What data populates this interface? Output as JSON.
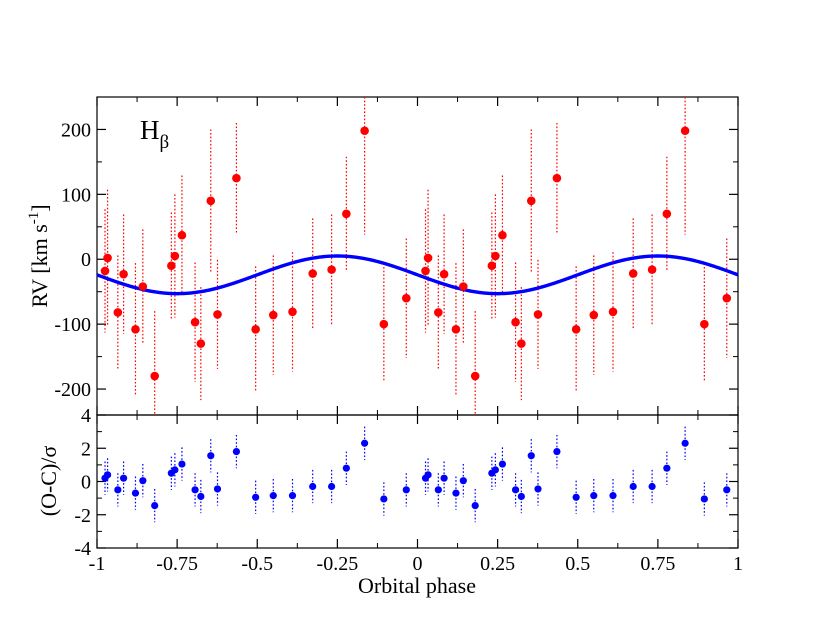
{
  "chart_data": [
    {
      "type": "scatter",
      "panel": "top",
      "title": "",
      "annotation": {
        "base": "H",
        "subscript": "β"
      },
      "ylabel": {
        "text": "RV [km s",
        "superscript": "-1",
        "close": "]"
      },
      "xlim": [
        -1,
        1
      ],
      "ylim": [
        -240,
        250
      ],
      "yticks": [
        -200,
        -100,
        0,
        100,
        200
      ],
      "ytick_labels": [
        "-200",
        "-100",
        "0",
        "100",
        "200"
      ],
      "grid": false,
      "colors": {
        "points": "#ff0000",
        "model": "#0000ff"
      },
      "model": {
        "name": "RV fit",
        "mean": -24,
        "amplitude": 29,
        "min_phase": -0.75
      },
      "series": [
        {
          "name": "RV",
          "x": [
            -0.975,
            -0.967,
            -0.935,
            -0.917,
            -0.88,
            -0.857,
            -0.82,
            -0.768,
            -0.757,
            -0.735,
            -0.694,
            -0.676,
            -0.645,
            -0.624,
            -0.565,
            -0.505,
            -0.45,
            -0.39,
            -0.327,
            -0.268,
            -0.222,
            -0.165,
            -0.105,
            -0.035,
            0.025,
            0.033,
            0.065,
            0.083,
            0.12,
            0.143,
            0.18,
            0.232,
            0.243,
            0.265,
            0.306,
            0.324,
            0.355,
            0.376,
            0.435,
            0.495,
            0.55,
            0.61,
            0.673,
            0.732,
            0.778,
            0.835,
            0.895,
            0.965
          ],
          "y": [
            -18,
            2,
            -82,
            -23,
            -108,
            -42,
            -180,
            -10,
            5,
            37,
            -97,
            -130,
            90,
            -85,
            125,
            -108,
            -86,
            -81,
            -22,
            -16,
            70,
            198,
            -100,
            -60,
            -18,
            2,
            -82,
            -23,
            -108,
            -42,
            -180,
            -10,
            5,
            37,
            -97,
            -130,
            90,
            -85,
            125,
            -108,
            -86,
            -81,
            -22,
            -16,
            70,
            198,
            -100,
            -60
          ],
          "err": [
            95,
            105,
            88,
            92,
            102,
            88,
            100,
            82,
            95,
            92,
            92,
            87,
            110,
            84,
            85,
            97,
            92,
            92,
            85,
            85,
            88,
            160,
            88,
            92,
            95,
            105,
            88,
            92,
            102,
            88,
            100,
            82,
            95,
            92,
            92,
            87,
            110,
            84,
            85,
            97,
            92,
            92,
            85,
            85,
            88,
            160,
            88,
            92
          ]
        }
      ]
    },
    {
      "type": "scatter",
      "panel": "bottom",
      "xlabel": "Orbital phase",
      "ylabel": "(O-C)/σ",
      "xlim": [
        -1,
        1
      ],
      "ylim": [
        -4,
        4
      ],
      "xticks": [
        -1,
        -0.75,
        -0.5,
        -0.25,
        0,
        0.25,
        0.5,
        0.75,
        1
      ],
      "xtick_labels": [
        "-1",
        "-0.75",
        "-0.5",
        "-0.25",
        "0",
        "0.25",
        "0.5",
        "0.75",
        "1"
      ],
      "yticks": [
        -4,
        -2,
        0,
        2,
        4
      ],
      "ytick_labels": [
        "-4",
        "-2",
        "0",
        "2",
        "4"
      ],
      "grid": false,
      "colors": {
        "points": "#0000ff"
      },
      "series": [
        {
          "name": "(O-C)/σ",
          "x": [
            -0.975,
            -0.967,
            -0.935,
            -0.917,
            -0.88,
            -0.857,
            -0.82,
            -0.768,
            -0.757,
            -0.735,
            -0.694,
            -0.676,
            -0.645,
            -0.624,
            -0.565,
            -0.505,
            -0.45,
            -0.39,
            -0.327,
            -0.268,
            -0.222,
            -0.165,
            -0.105,
            -0.035,
            0.025,
            0.033,
            0.065,
            0.083,
            0.12,
            0.143,
            0.18,
            0.232,
            0.243,
            0.265,
            0.306,
            0.324,
            0.355,
            0.376,
            0.435,
            0.495,
            0.55,
            0.61,
            0.673,
            0.732,
            0.778,
            0.835,
            0.895,
            0.965
          ],
          "y": [
            0.2,
            0.4,
            -0.5,
            0.2,
            -0.7,
            0.05,
            -1.45,
            0.5,
            0.7,
            1.05,
            -0.5,
            -0.9,
            1.55,
            -0.45,
            1.8,
            -0.95,
            -0.85,
            -0.85,
            -0.3,
            -0.3,
            0.8,
            2.3,
            -1.05,
            -0.5,
            0.2,
            0.4,
            -0.5,
            0.2,
            -0.7,
            0.05,
            -1.45,
            0.5,
            0.7,
            1.05,
            -0.5,
            -0.9,
            1.55,
            -0.45,
            1.8,
            -0.95,
            -0.85,
            -0.85,
            -0.3,
            -0.3,
            0.8,
            2.3,
            -1.05,
            -0.5
          ],
          "err": [
            1,
            1,
            1,
            1,
            1,
            1,
            1,
            1,
            1,
            1,
            1,
            1,
            1,
            1,
            1,
            1,
            1,
            1,
            1,
            1,
            1,
            1,
            1,
            1,
            1,
            1,
            1,
            1,
            1,
            1,
            1,
            1,
            1,
            1,
            1,
            1,
            1,
            1,
            1,
            1,
            1,
            1,
            1,
            1,
            1,
            1,
            1,
            1
          ]
        }
      ]
    }
  ]
}
